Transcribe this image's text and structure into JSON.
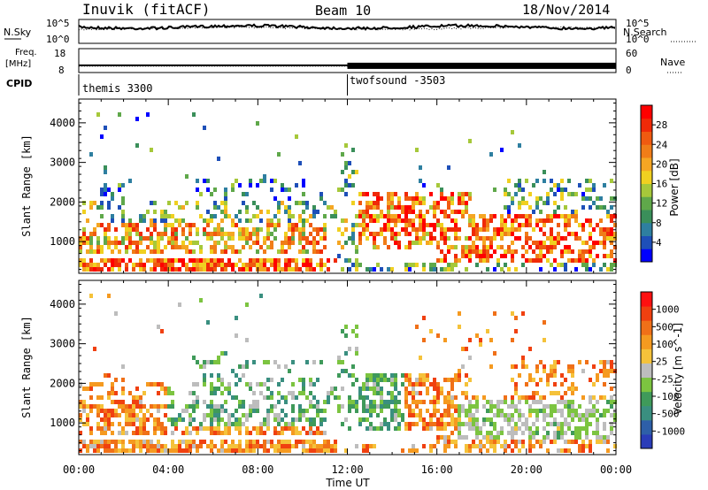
{
  "header": {
    "station": "Inuvik (fitACF)",
    "beam": "Beam 10",
    "date": "18/Nov/2014"
  },
  "noise_panel": {
    "left_label": "N.Sky",
    "right_label": "N.Search",
    "left_ticks": [
      "10^5",
      "10^0"
    ],
    "right_ticks": [
      "10^5",
      "10^0"
    ]
  },
  "freq_panel": {
    "left_label_1": "Freq.",
    "left_label_2": "[MHz]",
    "right_label": "Nave",
    "left_ticks": [
      "18",
      "8"
    ],
    "right_ticks": [
      "60",
      "0"
    ],
    "freq_mhz": 11,
    "nave": 16
  },
  "cpid": {
    "label": "CPID",
    "segments": [
      {
        "name": "themis 3300",
        "start_hour": 0
      },
      {
        "name": "twofsound -3503",
        "start_hour": 12
      }
    ]
  },
  "chart_data": [
    {
      "type": "heatmap",
      "name": "power",
      "ylabel": "Slant Range [km]",
      "ylim": [
        200,
        4600
      ],
      "yticks": [
        1000,
        2000,
        3000,
        4000
      ],
      "xlim": [
        0,
        24
      ],
      "colorbar": {
        "label": "Power [dB]",
        "ticks": [
          "28",
          "24",
          "20",
          "16",
          "12",
          "8",
          "4"
        ],
        "colors": [
          "#0000ff",
          "#1e4fb8",
          "#2e7fa0",
          "#3a8f5a",
          "#5fa84a",
          "#a6c83a",
          "#f0d020",
          "#f5a623",
          "#f07d18",
          "#f05a10",
          "#f02a08",
          "#ff0000"
        ]
      }
    },
    {
      "type": "heatmap",
      "name": "velocity",
      "ylabel": "Slant Range [km]",
      "ylim": [
        200,
        4600
      ],
      "yticks": [
        1000,
        2000,
        3000,
        4000
      ],
      "xlim": [
        0,
        24
      ],
      "xlabel": "Time UT",
      "xticks": [
        "00:00",
        "04:00",
        "08:00",
        "12:00",
        "16:00",
        "20:00",
        "00:00"
      ],
      "colorbar": {
        "label": "Velocity [m s^-1]",
        "ticks": [
          "1000",
          "500",
          "100",
          "25",
          "-25",
          "-100",
          "-500",
          "-1000"
        ],
        "colors": [
          "#2a3cb8",
          "#2e5fa8",
          "#3a8f80",
          "#3f9a5a",
          "#7cc440",
          "#bdbdbd",
          "#f5c23a",
          "#f59a20",
          "#f07018",
          "#f04010",
          "#ff1010"
        ]
      }
    }
  ]
}
